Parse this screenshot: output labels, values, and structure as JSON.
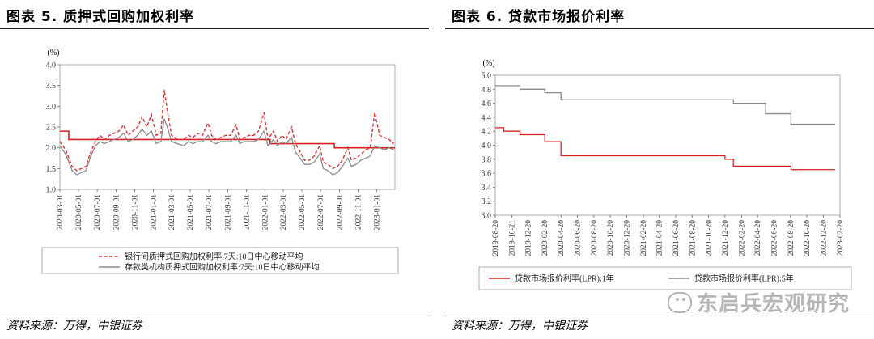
{
  "left": {
    "title": "图表 5. 质押式回购加权利率",
    "source": "资料来源：万得，中银证券",
    "chart_data": {
      "type": "line",
      "ylabel": "(%)",
      "ylim": [
        1.0,
        4.0
      ],
      "yticks": [
        "1.0",
        "1.5",
        "2.0",
        "2.5",
        "3.0",
        "3.5",
        "4.0"
      ],
      "xticks": [
        "2020-03-01",
        "2020-05-01",
        "2020-07-01",
        "2020-09-01",
        "2020-11-01",
        "2021-01-01",
        "2021-03-01",
        "2021-05-01",
        "2021-07-01",
        "2021-09-01",
        "2021-11-01",
        "2022-01-01",
        "2022-03-01",
        "2022-05-01",
        "2022-07-01",
        "2022-09-01",
        "2022-11-01",
        "2023-01-01"
      ],
      "x_start": "2020-03-01",
      "x_end": "2023-03-01",
      "policy_rate": {
        "color": "#d62020",
        "steps": [
          {
            "date": "2020-03-01",
            "value": 2.4
          },
          {
            "date": "2020-03-30",
            "value": 2.2
          },
          {
            "date": "2022-01-17",
            "value": 2.1
          },
          {
            "date": "2022-08-15",
            "value": 2.0
          }
        ]
      },
      "series": [
        {
          "name": "银行间质押式回购加权利率:7天:10日中心移动平均",
          "color": "#e03030",
          "dash": true,
          "points": [
            [
              "2020-03-01",
              2.15
            ],
            [
              "2020-03-20",
              1.95
            ],
            [
              "2020-04-10",
              1.55
            ],
            [
              "2020-04-25",
              1.45
            ],
            [
              "2020-05-10",
              1.5
            ],
            [
              "2020-05-25",
              1.55
            ],
            [
              "2020-06-10",
              1.9
            ],
            [
              "2020-06-25",
              2.15
            ],
            [
              "2020-07-10",
              2.3
            ],
            [
              "2020-07-25",
              2.2
            ],
            [
              "2020-08-10",
              2.3
            ],
            [
              "2020-08-25",
              2.35
            ],
            [
              "2020-09-10",
              2.4
            ],
            [
              "2020-09-25",
              2.55
            ],
            [
              "2020-10-10",
              2.3
            ],
            [
              "2020-10-25",
              2.4
            ],
            [
              "2020-11-10",
              2.5
            ],
            [
              "2020-11-25",
              2.75
            ],
            [
              "2020-12-10",
              2.5
            ],
            [
              "2020-12-25",
              2.8
            ],
            [
              "2021-01-10",
              2.3
            ],
            [
              "2021-01-25",
              2.35
            ],
            [
              "2021-02-05",
              3.4
            ],
            [
              "2021-02-15",
              2.9
            ],
            [
              "2021-03-01",
              2.3
            ],
            [
              "2021-03-20",
              2.2
            ],
            [
              "2021-04-10",
              2.2
            ],
            [
              "2021-04-25",
              2.3
            ],
            [
              "2021-05-10",
              2.25
            ],
            [
              "2021-05-25",
              2.35
            ],
            [
              "2021-06-10",
              2.3
            ],
            [
              "2021-06-28",
              2.6
            ],
            [
              "2021-07-10",
              2.3
            ],
            [
              "2021-07-25",
              2.2
            ],
            [
              "2021-08-10",
              2.25
            ],
            [
              "2021-08-25",
              2.3
            ],
            [
              "2021-09-10",
              2.3
            ],
            [
              "2021-09-28",
              2.55
            ],
            [
              "2021-10-10",
              2.2
            ],
            [
              "2021-10-25",
              2.25
            ],
            [
              "2021-11-10",
              2.3
            ],
            [
              "2021-11-25",
              2.3
            ],
            [
              "2021-12-10",
              2.4
            ],
            [
              "2021-12-28",
              2.85
            ],
            [
              "2022-01-10",
              2.2
            ],
            [
              "2022-01-28",
              2.4
            ],
            [
              "2022-02-10",
              2.15
            ],
            [
              "2022-02-25",
              2.3
            ],
            [
              "2022-03-10",
              2.2
            ],
            [
              "2022-03-28",
              2.5
            ],
            [
              "2022-04-10",
              2.1
            ],
            [
              "2022-04-25",
              1.9
            ],
            [
              "2022-05-10",
              1.7
            ],
            [
              "2022-05-25",
              1.7
            ],
            [
              "2022-06-10",
              1.8
            ],
            [
              "2022-06-28",
              2.05
            ],
            [
              "2022-07-10",
              1.65
            ],
            [
              "2022-07-25",
              1.6
            ],
            [
              "2022-08-10",
              1.5
            ],
            [
              "2022-08-25",
              1.55
            ],
            [
              "2022-09-10",
              1.7
            ],
            [
              "2022-09-28",
              2.0
            ],
            [
              "2022-10-10",
              1.7
            ],
            [
              "2022-10-25",
              1.75
            ],
            [
              "2022-11-10",
              1.85
            ],
            [
              "2022-11-25",
              1.95
            ],
            [
              "2022-12-10",
              2.0
            ],
            [
              "2022-12-25",
              2.85
            ],
            [
              "2023-01-10",
              2.3
            ],
            [
              "2023-01-25",
              2.25
            ],
            [
              "2023-02-10",
              2.2
            ],
            [
              "2023-02-25",
              2.1
            ]
          ]
        },
        {
          "name": "存款类机构质押式回购加权利率:7天:10日中心移动平均",
          "color": "#8a8a8a",
          "dash": false,
          "points": [
            [
              "2020-03-01",
              2.05
            ],
            [
              "2020-03-20",
              1.85
            ],
            [
              "2020-04-10",
              1.45
            ],
            [
              "2020-04-25",
              1.35
            ],
            [
              "2020-05-10",
              1.4
            ],
            [
              "2020-05-25",
              1.45
            ],
            [
              "2020-06-10",
              1.8
            ],
            [
              "2020-06-25",
              2.05
            ],
            [
              "2020-07-10",
              2.15
            ],
            [
              "2020-07-25",
              2.1
            ],
            [
              "2020-08-10",
              2.15
            ],
            [
              "2020-08-25",
              2.2
            ],
            [
              "2020-09-10",
              2.25
            ],
            [
              "2020-09-25",
              2.35
            ],
            [
              "2020-10-10",
              2.15
            ],
            [
              "2020-10-25",
              2.2
            ],
            [
              "2020-11-10",
              2.3
            ],
            [
              "2020-11-25",
              2.45
            ],
            [
              "2020-12-10",
              2.3
            ],
            [
              "2020-12-25",
              2.4
            ],
            [
              "2021-01-10",
              2.1
            ],
            [
              "2021-01-25",
              2.15
            ],
            [
              "2021-02-05",
              2.7
            ],
            [
              "2021-02-15",
              2.5
            ],
            [
              "2021-03-01",
              2.15
            ],
            [
              "2021-03-20",
              2.1
            ],
            [
              "2021-04-10",
              2.05
            ],
            [
              "2021-04-25",
              2.15
            ],
            [
              "2021-05-10",
              2.1
            ],
            [
              "2021-05-25",
              2.15
            ],
            [
              "2021-06-10",
              2.15
            ],
            [
              "2021-06-28",
              2.3
            ],
            [
              "2021-07-10",
              2.15
            ],
            [
              "2021-07-25",
              2.1
            ],
            [
              "2021-08-10",
              2.15
            ],
            [
              "2021-08-25",
              2.15
            ],
            [
              "2021-09-10",
              2.15
            ],
            [
              "2021-09-28",
              2.3
            ],
            [
              "2021-10-10",
              2.1
            ],
            [
              "2021-10-25",
              2.15
            ],
            [
              "2021-11-10",
              2.15
            ],
            [
              "2021-11-25",
              2.15
            ],
            [
              "2021-12-10",
              2.2
            ],
            [
              "2021-12-28",
              2.4
            ],
            [
              "2022-01-10",
              2.05
            ],
            [
              "2022-01-28",
              2.2
            ],
            [
              "2022-02-10",
              2.05
            ],
            [
              "2022-02-25",
              2.15
            ],
            [
              "2022-03-10",
              2.1
            ],
            [
              "2022-03-28",
              2.25
            ],
            [
              "2022-04-10",
              1.9
            ],
            [
              "2022-04-25",
              1.75
            ],
            [
              "2022-05-10",
              1.6
            ],
            [
              "2022-05-25",
              1.6
            ],
            [
              "2022-06-10",
              1.65
            ],
            [
              "2022-06-28",
              1.85
            ],
            [
              "2022-07-10",
              1.5
            ],
            [
              "2022-07-25",
              1.45
            ],
            [
              "2022-08-10",
              1.35
            ],
            [
              "2022-08-25",
              1.4
            ],
            [
              "2022-09-10",
              1.55
            ],
            [
              "2022-09-28",
              1.75
            ],
            [
              "2022-10-10",
              1.55
            ],
            [
              "2022-10-25",
              1.6
            ],
            [
              "2022-11-10",
              1.7
            ],
            [
              "2022-11-25",
              1.75
            ],
            [
              "2022-12-10",
              1.8
            ],
            [
              "2022-12-25",
              2.05
            ],
            [
              "2023-01-10",
              2.0
            ],
            [
              "2023-01-25",
              1.95
            ],
            [
              "2023-02-10",
              2.0
            ],
            [
              "2023-02-25",
              1.95
            ]
          ]
        }
      ],
      "legend": [
        {
          "label": "银行间质押式回购加权利率:7天:10日中心移动平均",
          "color": "#e03030",
          "dash": true
        },
        {
          "label": "存款类机构质押式回购加权利率:7天:10日中心移动平均",
          "color": "#8a8a8a",
          "dash": false
        }
      ]
    }
  },
  "right": {
    "title": "图表 6. 贷款市场报价利率",
    "source": "资料来源：万得，中银证券",
    "chart_data": {
      "type": "line",
      "ylabel": "(%)",
      "ylim": [
        3.0,
        5.0
      ],
      "yticks": [
        "3.0",
        "3.2",
        "3.4",
        "3.6",
        "3.8",
        "4.0",
        "4.2",
        "4.4",
        "4.6",
        "4.8",
        "5.0"
      ],
      "xticks": [
        "2019-08-20",
        "2019-10-21",
        "2019-12-20",
        "2020-02-20",
        "2020-04-20",
        "2020-06-20",
        "2020-08-20",
        "2020-10-20",
        "2020-12-20",
        "2021-02-20",
        "2021-04-20",
        "2021-06-20",
        "2021-08-20",
        "2021-10-20",
        "2021-12-20",
        "2022-02-20",
        "2022-04-20",
        "2022-06-20",
        "2022-08-20",
        "2022-10-20",
        "2022-12-20",
        "2023-02-20"
      ],
      "x_start": "2019-08-20",
      "x_end": "2023-02-20",
      "series": [
        {
          "name": "贷款市场报价利率(LPR):1年",
          "color": "#d62020",
          "steps": [
            [
              "2019-08-20",
              4.25
            ],
            [
              "2019-09-20",
              4.2
            ],
            [
              "2019-11-20",
              4.15
            ],
            [
              "2020-02-20",
              4.05
            ],
            [
              "2020-04-20",
              3.85
            ],
            [
              "2021-12-20",
              3.8
            ],
            [
              "2022-01-20",
              3.7
            ],
            [
              "2022-08-22",
              3.65
            ]
          ]
        },
        {
          "name": "贷款市场报价利率(LPR):5年",
          "color": "#8a8a8a",
          "steps": [
            [
              "2019-08-20",
              4.85
            ],
            [
              "2019-11-20",
              4.8
            ],
            [
              "2020-02-20",
              4.75
            ],
            [
              "2020-04-20",
              4.65
            ],
            [
              "2022-01-20",
              4.6
            ],
            [
              "2022-05-20",
              4.45
            ],
            [
              "2022-08-22",
              4.3
            ]
          ]
        }
      ],
      "legend": [
        {
          "label": "贷款市场报价利率(LPR):1年",
          "color": "#d62020"
        },
        {
          "label": "贷款市场报价利率(LPR):5年",
          "color": "#8a8a8a"
        }
      ]
    }
  },
  "watermark": "东启兵宏观研究"
}
